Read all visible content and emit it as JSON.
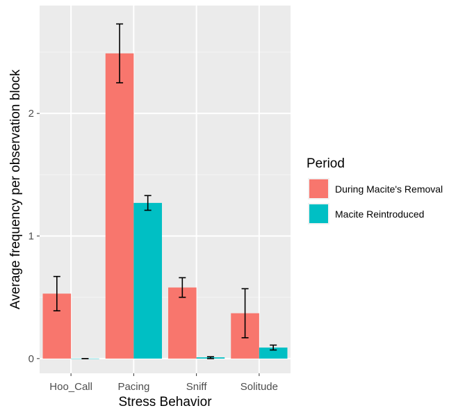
{
  "chart_data": {
    "type": "bar",
    "xlabel": "Stress Behavior",
    "ylabel": "Average frequency per observation block",
    "categories": [
      "Hoo_Call",
      "Pacing",
      "Sniff",
      "Solitude"
    ],
    "ylim": [
      -0.12,
      2.88
    ],
    "yticks": [
      0,
      1,
      2
    ],
    "grid": true,
    "legend": {
      "title": "Period",
      "placement": "right"
    },
    "series": [
      {
        "name": "During Macite's Removal",
        "color": "#F8766D",
        "values": [
          0.53,
          2.49,
          0.58,
          0.37
        ],
        "err_low": [
          0.39,
          2.25,
          0.5,
          0.17
        ],
        "err_high": [
          0.67,
          2.73,
          0.66,
          0.57
        ]
      },
      {
        "name": "Macite Reintroduced",
        "color": "#00BFC4",
        "values": [
          0.0,
          1.27,
          0.01,
          0.09
        ],
        "err_low": [
          0.0,
          1.21,
          0.0,
          0.07
        ],
        "err_high": [
          0.0,
          1.33,
          0.015,
          0.11
        ]
      }
    ]
  }
}
